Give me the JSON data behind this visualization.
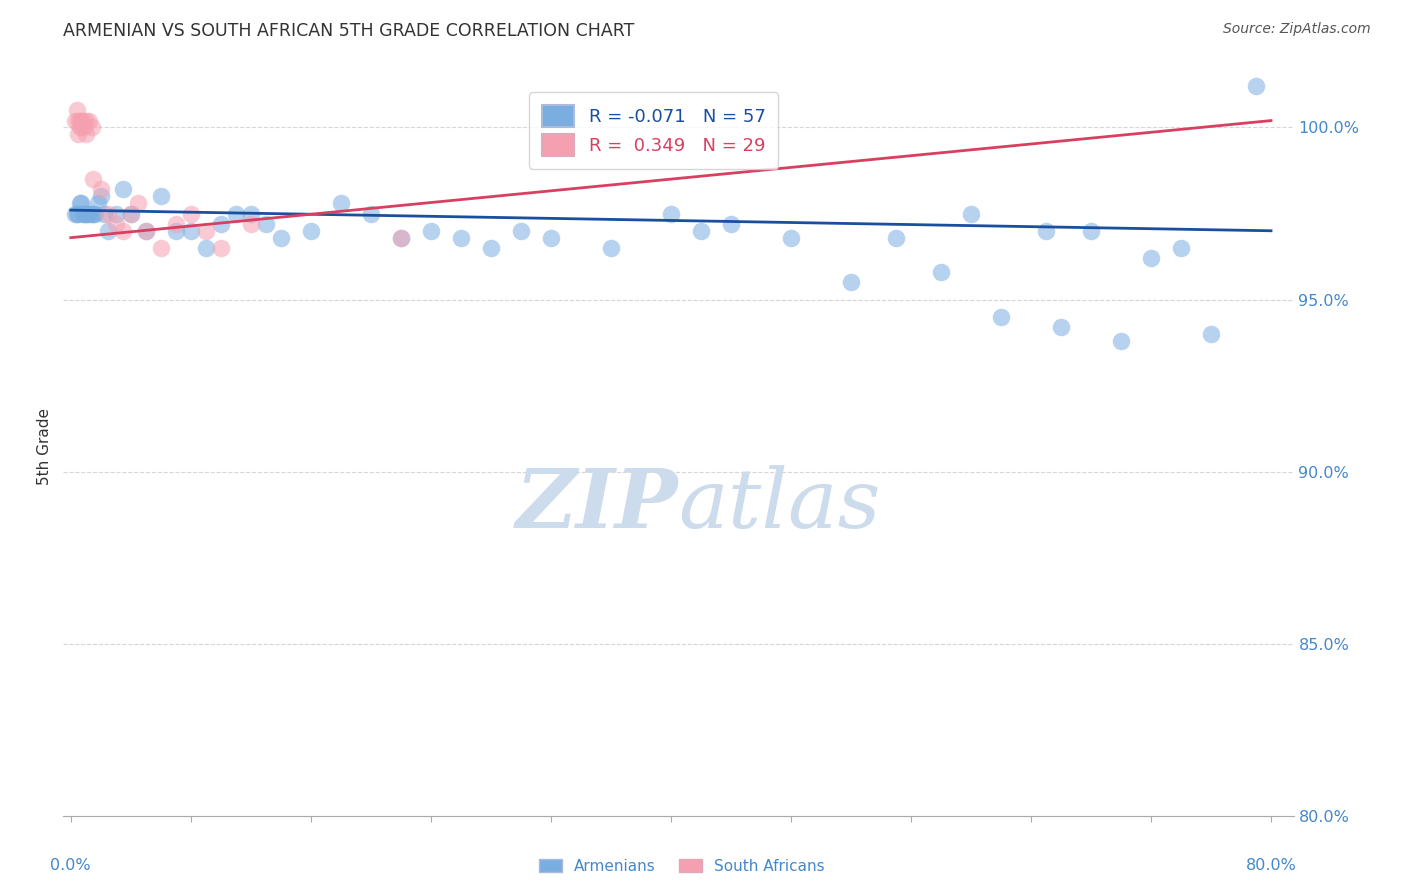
{
  "title": "ARMENIAN VS SOUTH AFRICAN 5TH GRADE CORRELATION CHART",
  "source": "Source: ZipAtlas.com",
  "ylabel": "5th Grade",
  "xlim": [
    0.0,
    80.0
  ],
  "ylim": [
    80.0,
    101.5
  ],
  "yticks": [
    80.0,
    85.0,
    90.0,
    95.0,
    100.0
  ],
  "ytick_labels": [
    "80.0%",
    "85.0%",
    "90.0%",
    "95.0%",
    "100.0%"
  ],
  "blue_R": -0.071,
  "blue_N": 57,
  "pink_R": 0.349,
  "pink_N": 29,
  "blue_color": "#7aade0",
  "pink_color": "#f5a0b0",
  "blue_line_color": "#1a4fa0",
  "pink_line_color": "#d94060",
  "background_color": "#ffffff",
  "grid_color": "#bbbbbb",
  "watermark_color": "#cddcec",
  "blue_line_x0": 0.0,
  "blue_line_y0": 97.6,
  "blue_line_x1": 80.0,
  "blue_line_y1": 97.0,
  "pink_line_x0": 0.0,
  "pink_line_y0": 96.8,
  "pink_line_x1": 80.0,
  "pink_line_y1": 100.2,
  "blue_x": [
    0.3,
    0.4,
    0.5,
    0.6,
    0.7,
    0.8,
    0.9,
    1.0,
    1.1,
    1.2,
    1.4,
    1.5,
    1.6,
    1.8,
    2.0,
    2.2,
    2.5,
    3.0,
    3.5,
    4.0,
    5.0,
    6.0,
    7.0,
    8.0,
    9.0,
    10.0,
    11.0,
    12.0,
    13.0,
    14.0,
    16.0,
    18.0,
    20.0,
    22.0,
    24.0,
    26.0,
    28.0,
    30.0,
    32.0,
    36.0,
    40.0,
    42.0,
    44.0,
    48.0,
    52.0,
    55.0,
    58.0,
    60.0,
    62.0,
    65.0,
    66.0,
    68.0,
    70.0,
    72.0,
    74.0,
    76.0,
    79.0
  ],
  "blue_y": [
    97.5,
    97.5,
    97.5,
    97.8,
    97.8,
    97.5,
    97.5,
    97.5,
    97.5,
    97.5,
    97.5,
    97.5,
    97.5,
    97.8,
    98.0,
    97.5,
    97.0,
    97.5,
    98.2,
    97.5,
    97.0,
    98.0,
    97.0,
    97.0,
    96.5,
    97.2,
    97.5,
    97.5,
    97.2,
    96.8,
    97.0,
    97.8,
    97.5,
    96.8,
    97.0,
    96.8,
    96.5,
    97.0,
    96.8,
    96.5,
    97.5,
    97.0,
    97.2,
    96.8,
    95.5,
    96.8,
    95.8,
    97.5,
    94.5,
    97.0,
    94.2,
    97.0,
    93.8,
    96.2,
    96.5,
    94.0,
    101.2
  ],
  "pink_x": [
    0.3,
    0.4,
    0.5,
    0.5,
    0.6,
    0.6,
    0.7,
    0.7,
    0.8,
    0.9,
    1.0,
    1.0,
    1.2,
    1.4,
    1.5,
    2.0,
    2.5,
    3.0,
    3.5,
    4.0,
    4.5,
    5.0,
    6.0,
    7.0,
    8.0,
    9.0,
    10.0,
    12.0,
    22.0
  ],
  "pink_y": [
    100.2,
    100.5,
    100.2,
    99.8,
    100.2,
    100.0,
    100.2,
    100.0,
    100.2,
    100.0,
    99.8,
    100.2,
    100.2,
    100.0,
    98.5,
    98.2,
    97.5,
    97.2,
    97.0,
    97.5,
    97.8,
    97.0,
    96.5,
    97.2,
    97.5,
    97.0,
    96.5,
    97.2,
    96.8
  ]
}
